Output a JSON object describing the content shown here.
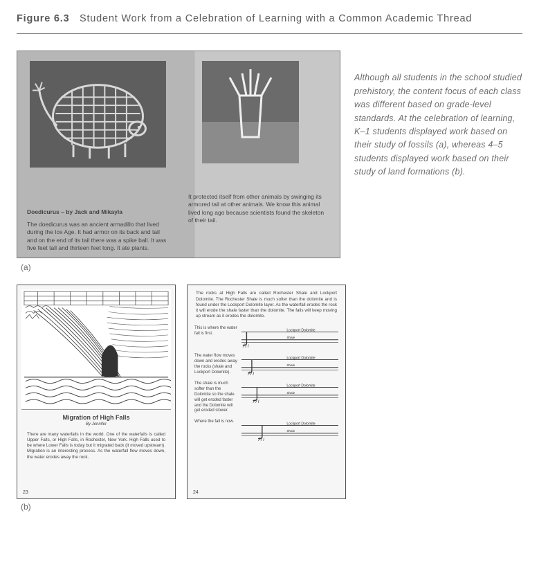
{
  "figure": {
    "label": "Figure 6.3",
    "title": "Student Work from a Celebration of Learning with a Common Academic Thread"
  },
  "caption": "Although all students in the school studied prehistory, the content focus of each class was different based on grade-level standards. At the celebration of learning, K–1 students displayed work based on their study of fossils (a), whereas 4–5 students displayed work based on their study of land formations (b).",
  "label_a": "(a)",
  "label_b": "(b)",
  "panel_a": {
    "left_title": "Doedicurus – by Jack and Mikayla",
    "left_body": "The doedicurus was an ancient armadillo that lived during the Ice Age. It had armor on its back and tail and on the end of its tail there was a spike ball. It was five feet tall and thirteen feet long. It ate plants.",
    "right_body": "It protected itself from other animals by swinging its armored tail at other animals. We know this animal lived long ago because scientists found the skeleton of their tail."
  },
  "panel_b_left": {
    "title": "Migration of High Falls",
    "byline": "By Jennifer",
    "essay": "There are many waterfalls in the world. One of the waterfalls is called Upper Falls, or High Falls, in Rochester, New York. High Falls used to be where Lower Falls is today but it migrated back (it moved upstream). Migration is an interesting process. As the waterfall flow moves down, the water erodes away the rock.",
    "page": "23"
  },
  "panel_b_right": {
    "intro": "The rocks at High Falls are called Rochester Shale and Lockport Dolomite. The Rochester Shale is much softer than the dolomite and is found under the Lockport Dolomite layer. As the waterfall erodes the rock it will erode the shale faster than the dolomite. The falls will keep moving up stream as it erodes the dolomite.",
    "rows": [
      {
        "note": "This is where the water fall is first.",
        "upper": "Lockport Dolomite",
        "lower": "Shale"
      },
      {
        "note": "The water flow moves down and erodes away the rocks (shale and Lockport Dolomite).",
        "upper": "Lockport Dolomite",
        "lower": "Shale"
      },
      {
        "note": "The shale is much softer than the Dolomite so the shale will get eroded faster and the Dolomite will get eroded slower.",
        "upper": "Lockport Dolomite",
        "lower": "Shale"
      },
      {
        "note": "Where the fall is now.",
        "upper": "Lockport Dolomite",
        "lower": "Shale"
      }
    ],
    "page": "24"
  },
  "colors": {
    "text": "#5a5a5a",
    "rule": "#8a8a8a",
    "panel_gray": "#b6b6b6",
    "art_dark": "#5e5e5e"
  }
}
